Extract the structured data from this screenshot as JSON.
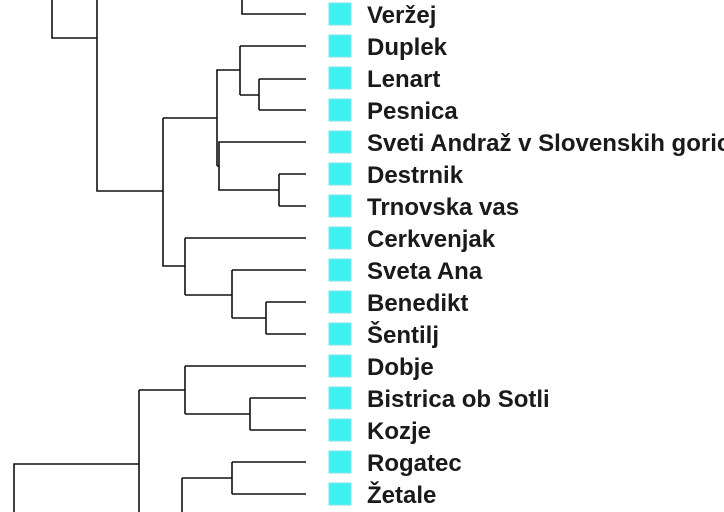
{
  "colors": {
    "edge": "#111111",
    "swatch_fill": "#3ef0f0",
    "swatch_stroke": "#7fe6e6",
    "label": "#1a1a1a"
  },
  "tree": {
    "leaves": [
      "Veržej",
      "Duplek",
      "Lenart",
      "Pesnica",
      "Sveti Andraž v Slovenskih goricah",
      "Destrnik",
      "Trnovska vas",
      "Cerkvenjak",
      "Sveta Ana",
      "Benedikt",
      "Šentilj",
      "Dobje",
      "Bistrica ob Sotli",
      "Kozje",
      "Rogatec",
      "Žetale"
    ]
  }
}
